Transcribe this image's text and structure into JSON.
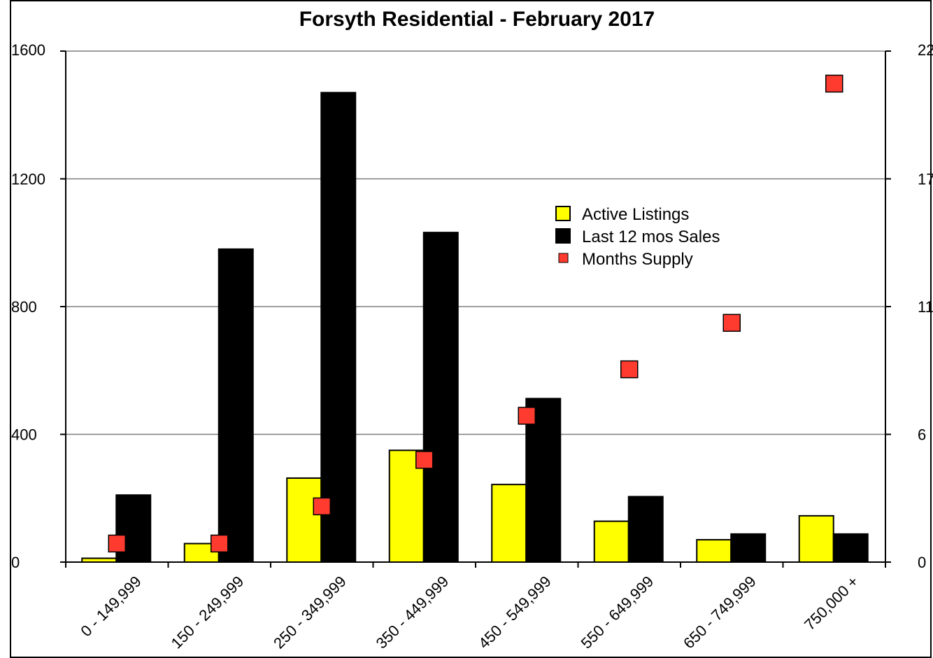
{
  "chart_data": {
    "type": "bar",
    "title": "Forsyth Residential - February 2017",
    "categories": [
      "0 - 149,999",
      "150 - 249,999",
      "250 - 349,999",
      "350 - 449,999",
      "450 - 549,999",
      "550 - 649,999",
      "650 - 749,999",
      "750,000 +"
    ],
    "series": [
      {
        "name": "Active Listings",
        "type": "bar",
        "axis": "left",
        "color": "#ffff00",
        "values": [
          12,
          58,
          263,
          350,
          243,
          128,
          70,
          145
        ]
      },
      {
        "name": "Last 12 mos Sales",
        "type": "bar",
        "axis": "left",
        "color": "#000000",
        "values": [
          210,
          980,
          1470,
          1032,
          512,
          205,
          88,
          88
        ]
      },
      {
        "name": "Months Supply",
        "type": "scatter",
        "axis": "right",
        "color": "#ff3b2f",
        "values": [
          0.8,
          0.8,
          2.4,
          4.4,
          6.3,
          8.3,
          10.3,
          20.6
        ]
      }
    ],
    "y_left": {
      "ylim": [
        0,
        1600
      ],
      "ticks": [
        "0",
        "400",
        "800",
        "1200",
        "1600"
      ]
    },
    "y_right": {
      "ylim": [
        0,
        22
      ],
      "ticks": [
        "0",
        "6",
        "11",
        "17",
        "22"
      ]
    },
    "grid": true,
    "legend": "center-right"
  }
}
